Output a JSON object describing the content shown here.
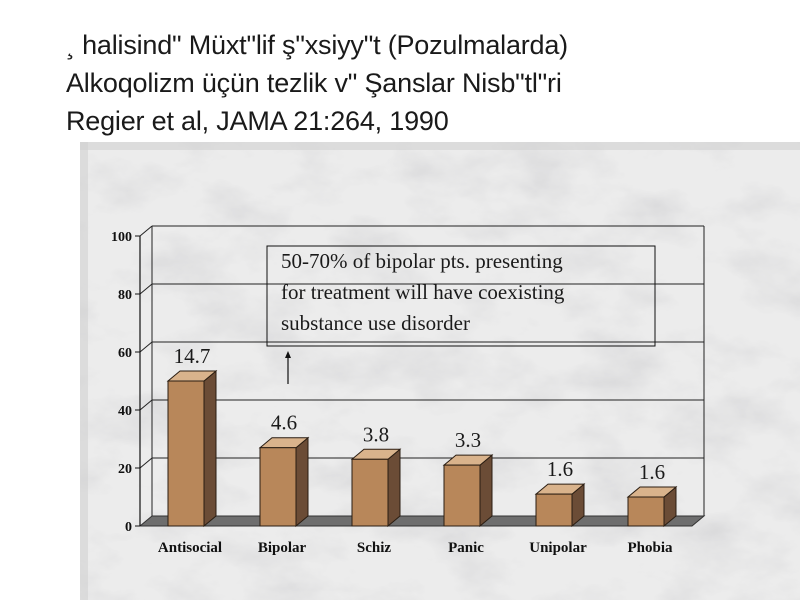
{
  "slide": {
    "title_lines": [
      "¸ halisindʺ Müxtʺlif şʺxsiyyʺt (Pozulmalarda)",
      "Alkoqolizm üçün tezlik vʺ Şanslar Nisbʺtlʺri",
      "Regier et al, JAMA 21:264, 1990"
    ]
  },
  "chart_data": {
    "type": "bar",
    "categories": [
      "Antisocial",
      "Bipolar",
      "Schiz",
      "Panic",
      "Unipolar",
      "Phobia"
    ],
    "values": [
      50,
      27,
      23,
      21,
      11,
      10
    ],
    "data_labels": [
      "14.7",
      "4.6",
      "3.8",
      "3.3",
      "1.6",
      "1.6"
    ],
    "yticks": [
      "0",
      "20",
      "40",
      "60",
      "80",
      "100"
    ],
    "ylim": [
      0,
      100
    ],
    "grid": true,
    "style": "3d",
    "annotation": {
      "lines": [
        "50-70% of bipolar pts. presenting",
        "for treatment will have coexisting",
        "substance use disorder"
      ],
      "arrow_target": "Bipolar"
    },
    "colors": {
      "bar_front": "#b8875a",
      "bar_side": "#6b4c36",
      "bar_top": "#d9b38c",
      "floor": "#6e6e6e",
      "grid": "#222222"
    }
  }
}
